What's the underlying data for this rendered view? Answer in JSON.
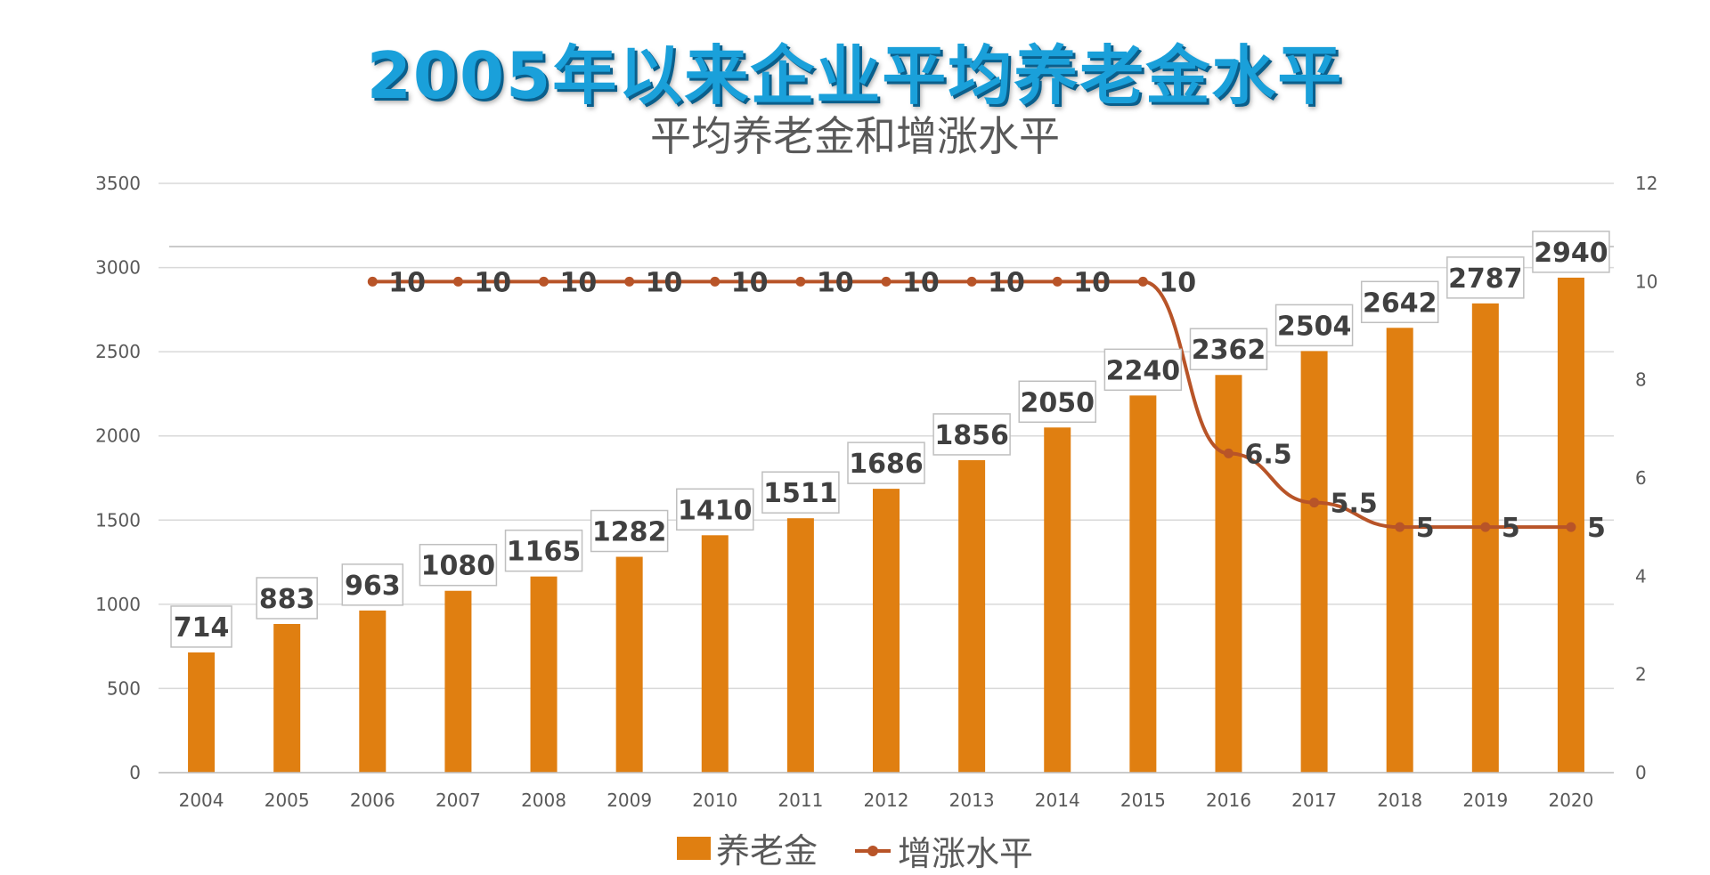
{
  "title": "2005年以来企业平均养老金水平",
  "subtitle": "平均养老金和增涨水平",
  "colors": {
    "bar": "#e07f11",
    "line": "#b85428",
    "grid": "#d9d9d9",
    "axis_text": "#595959",
    "label_border": "#bfbfbf"
  },
  "chart_data": {
    "type": "bar",
    "categories": [
      "2004",
      "2005",
      "2006",
      "2007",
      "2008",
      "2009",
      "2010",
      "2011",
      "2012",
      "2013",
      "2014",
      "2015",
      "2016",
      "2017",
      "2018",
      "2019",
      "2020"
    ],
    "series": [
      {
        "name": "养老金",
        "type": "bar",
        "axis": "left",
        "values": [
          714,
          883,
          963,
          1080,
          1165,
          1282,
          1410,
          1511,
          1686,
          1856,
          2050,
          2240,
          2362,
          2504,
          2642,
          2787,
          2940
        ]
      },
      {
        "name": "增涨水平",
        "type": "line",
        "axis": "right",
        "values": [
          null,
          null,
          10,
          10,
          10,
          10,
          10,
          10,
          10,
          10,
          10,
          10,
          6.5,
          5.5,
          5,
          5,
          5
        ]
      }
    ],
    "left_axis": {
      "min": 0,
      "max": 3500,
      "ticks": [
        0,
        500,
        1000,
        1500,
        2000,
        2500,
        3000,
        3500
      ]
    },
    "right_axis": {
      "min": 0,
      "max": 12,
      "ticks": [
        0,
        2,
        4,
        6,
        8,
        10,
        12
      ]
    },
    "grid": true,
    "legend": "bottom"
  },
  "legend": {
    "bar_label": "养老金",
    "line_label": "增涨水平"
  }
}
